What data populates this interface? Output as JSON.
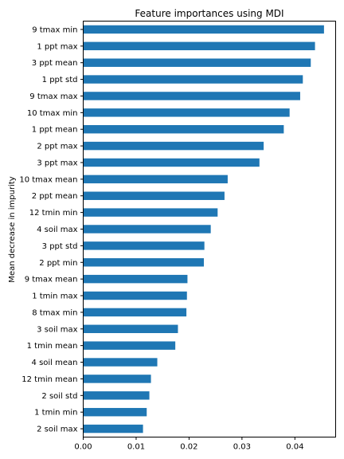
{
  "chart_data": {
    "type": "bar",
    "orientation": "horizontal",
    "title": "Feature importances using MDI",
    "xlabel": "",
    "ylabel": "Mean decrease in impurity",
    "xlim": [
      0,
      0.0477
    ],
    "xticks": [
      "0.00",
      "0.01",
      "0.02",
      "0.03",
      "0.04"
    ],
    "xtick_values": [
      0,
      0.01,
      0.02,
      0.03,
      0.04
    ],
    "grid": false,
    "bar_color": "#1f77b4",
    "categories": [
      "9 tmax min",
      "1 ppt max",
      "3 ppt mean",
      "1 ppt std",
      "9 tmax max",
      "10 tmax min",
      "1 ppt mean",
      "2 ppt max",
      "3 ppt max",
      "10 tmax mean",
      "2 ppt mean",
      "12 tmin min",
      "4 soil max",
      "3 ppt std",
      "2 ppt min",
      "9 tmax mean",
      "1 tmin max",
      "8 tmax min",
      "3 soil max",
      "1 tmin mean",
      "4 soil mean",
      "12 tmin mean",
      "2 soil std",
      "1 tmin min",
      "2 soil max"
    ],
    "values": [
      0.0455,
      0.0438,
      0.043,
      0.0415,
      0.041,
      0.039,
      0.0379,
      0.0341,
      0.0333,
      0.0273,
      0.0267,
      0.0254,
      0.0241,
      0.0229,
      0.0228,
      0.0197,
      0.0196,
      0.0195,
      0.0179,
      0.0174,
      0.014,
      0.0128,
      0.0125,
      0.012,
      0.0113
    ]
  }
}
